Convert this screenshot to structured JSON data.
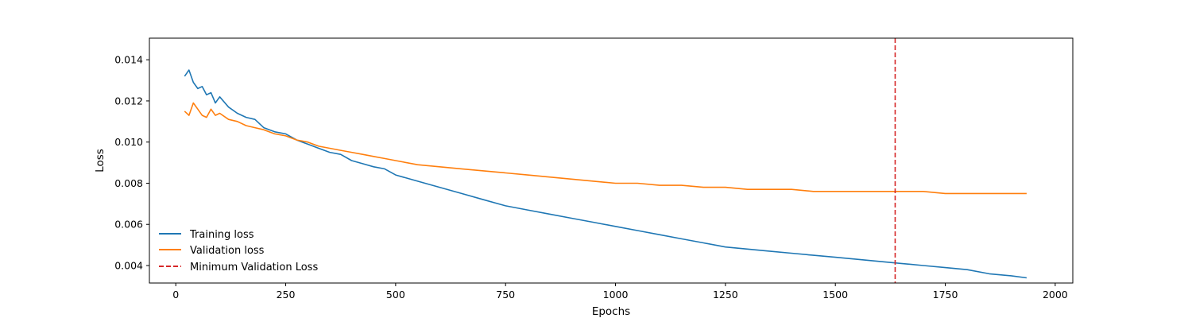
{
  "chart_data": {
    "type": "line",
    "title": "",
    "xlabel": "Epochs",
    "ylabel": "Loss",
    "xlim": [
      -60,
      2040
    ],
    "ylim": [
      0.00315,
      0.01505
    ],
    "xticks": [
      0,
      250,
      500,
      750,
      1000,
      1250,
      1500,
      1750,
      2000
    ],
    "xtick_labels": [
      "0",
      "250",
      "500",
      "750",
      "1000",
      "1250",
      "1500",
      "1750",
      "2000"
    ],
    "yticks": [
      0.004,
      0.006,
      0.008,
      0.01,
      0.012,
      0.014
    ],
    "ytick_labels": [
      "0.004",
      "0.006",
      "0.008",
      "0.010",
      "0.012",
      "0.014"
    ],
    "grid": false,
    "legend_position": "lower-left",
    "series": [
      {
        "name": "Training loss",
        "color": "#1f77b4",
        "x": [
          20,
          30,
          40,
          50,
          60,
          70,
          80,
          90,
          100,
          120,
          140,
          160,
          180,
          200,
          225,
          250,
          275,
          300,
          325,
          350,
          375,
          400,
          425,
          450,
          475,
          500,
          550,
          600,
          650,
          700,
          750,
          800,
          850,
          900,
          950,
          1000,
          1050,
          1100,
          1150,
          1200,
          1250,
          1300,
          1350,
          1400,
          1450,
          1500,
          1550,
          1600,
          1650,
          1700,
          1750,
          1800,
          1850,
          1900,
          1935
        ],
        "y": [
          0.0132,
          0.0135,
          0.0129,
          0.0126,
          0.0127,
          0.0123,
          0.0124,
          0.0119,
          0.0122,
          0.0117,
          0.0114,
          0.0112,
          0.0111,
          0.0107,
          0.0105,
          0.0104,
          0.0101,
          0.0099,
          0.0097,
          0.0095,
          0.0094,
          0.0091,
          0.00895,
          0.0088,
          0.0087,
          0.0084,
          0.0081,
          0.0078,
          0.0075,
          0.0072,
          0.0069,
          0.0067,
          0.0065,
          0.0063,
          0.0061,
          0.0059,
          0.0057,
          0.0055,
          0.0053,
          0.0051,
          0.0049,
          0.0048,
          0.0047,
          0.0046,
          0.0045,
          0.0044,
          0.0043,
          0.0042,
          0.0041,
          0.004,
          0.0039,
          0.0038,
          0.0036,
          0.0035,
          0.0034
        ]
      },
      {
        "name": "Validation loss",
        "color": "#ff7f0e",
        "x": [
          20,
          30,
          40,
          50,
          60,
          70,
          80,
          90,
          100,
          120,
          140,
          160,
          180,
          200,
          225,
          250,
          275,
          300,
          325,
          350,
          375,
          400,
          425,
          450,
          475,
          500,
          550,
          600,
          650,
          700,
          750,
          800,
          850,
          900,
          950,
          1000,
          1050,
          1100,
          1150,
          1200,
          1250,
          1300,
          1350,
          1400,
          1450,
          1500,
          1550,
          1600,
          1650,
          1700,
          1750,
          1800,
          1850,
          1900,
          1935
        ],
        "y": [
          0.0115,
          0.0113,
          0.0119,
          0.0116,
          0.0113,
          0.0112,
          0.0116,
          0.0113,
          0.0114,
          0.0111,
          0.011,
          0.0108,
          0.0107,
          0.0106,
          0.0104,
          0.0103,
          0.0101,
          0.01,
          0.0098,
          0.0097,
          0.0096,
          0.0095,
          0.0094,
          0.0093,
          0.0092,
          0.0091,
          0.0089,
          0.0088,
          0.0087,
          0.0086,
          0.0085,
          0.0084,
          0.0083,
          0.0082,
          0.0081,
          0.008,
          0.008,
          0.0079,
          0.0079,
          0.0078,
          0.0078,
          0.0077,
          0.0077,
          0.0077,
          0.0076,
          0.0076,
          0.0076,
          0.0076,
          0.0076,
          0.0076,
          0.0075,
          0.0075,
          0.0075,
          0.0075,
          0.0075
        ]
      }
    ],
    "vline": {
      "name": "Minimum Validation Loss",
      "x": 1636,
      "color": "#d62728",
      "style": "dashed"
    }
  }
}
